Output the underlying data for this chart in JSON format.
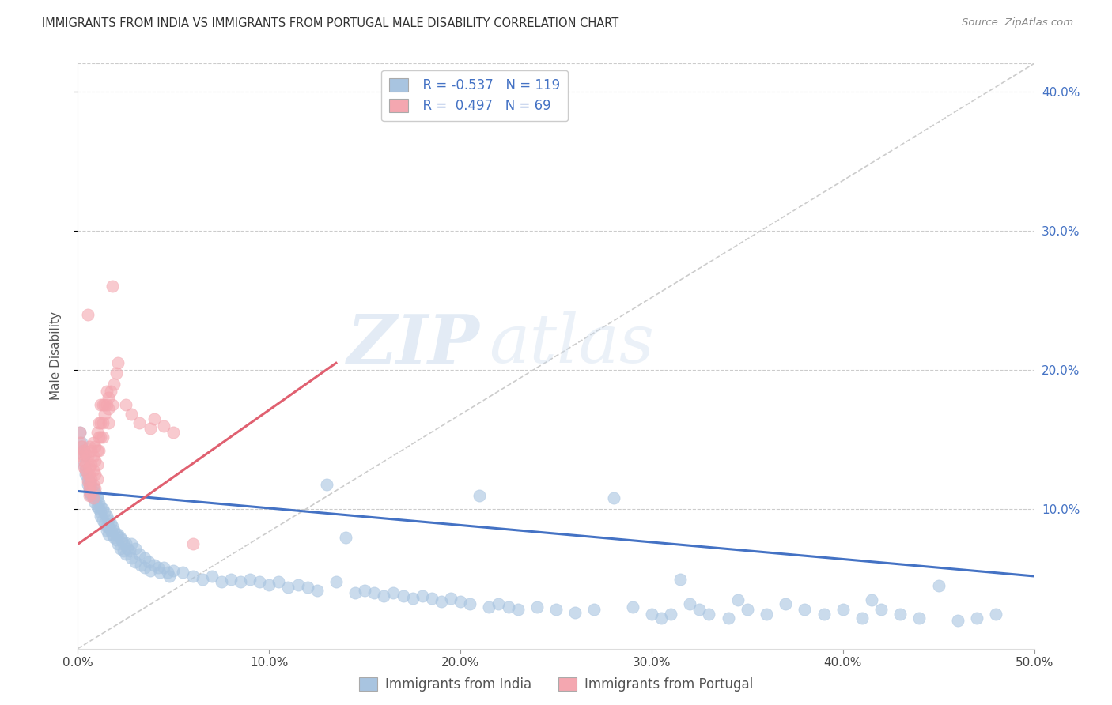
{
  "title": "IMMIGRANTS FROM INDIA VS IMMIGRANTS FROM PORTUGAL MALE DISABILITY CORRELATION CHART",
  "source": "Source: ZipAtlas.com",
  "ylabel": "Male Disability",
  "xlim": [
    0.0,
    0.5
  ],
  "ylim": [
    0.0,
    0.42
  ],
  "ytick_positions": [
    0.1,
    0.2,
    0.3,
    0.4
  ],
  "ytick_labels": [
    "10.0%",
    "20.0%",
    "30.0%",
    "40.0%"
  ],
  "xtick_positions": [
    0.0,
    0.1,
    0.2,
    0.3,
    0.4,
    0.5
  ],
  "xtick_labels": [
    "0.0%",
    "10.0%",
    "20.0%",
    "30.0%",
    "40.0%",
    "50.0%"
  ],
  "india_color": "#a8c4e0",
  "portugal_color": "#f4a7b0",
  "india_line_color": "#4472c4",
  "portugal_line_color": "#e06070",
  "diagonal_color": "#cccccc",
  "R_india": -0.537,
  "N_india": 119,
  "R_portugal": 0.497,
  "N_portugal": 69,
  "india_line_x0": 0.0,
  "india_line_y0": 0.113,
  "india_line_x1": 0.5,
  "india_line_y1": 0.052,
  "portugal_line_x0": 0.0,
  "portugal_line_y0": 0.075,
  "portugal_line_x1": 0.135,
  "portugal_line_y1": 0.205,
  "legend_label_india": "Immigrants from India",
  "legend_label_portugal": "Immigrants from Portugal",
  "watermark_zip": "ZIP",
  "watermark_atlas": "atlas",
  "india_scatter": [
    [
      0.001,
      0.155
    ],
    [
      0.002,
      0.148
    ],
    [
      0.002,
      0.145
    ],
    [
      0.003,
      0.142
    ],
    [
      0.003,
      0.138
    ],
    [
      0.003,
      0.132
    ],
    [
      0.004,
      0.128
    ],
    [
      0.004,
      0.125
    ],
    [
      0.005,
      0.122
    ],
    [
      0.005,
      0.118
    ],
    [
      0.006,
      0.115
    ],
    [
      0.006,
      0.12
    ],
    [
      0.006,
      0.112
    ],
    [
      0.007,
      0.118
    ],
    [
      0.007,
      0.11
    ],
    [
      0.008,
      0.115
    ],
    [
      0.008,
      0.108
    ],
    [
      0.009,
      0.112
    ],
    [
      0.009,
      0.105
    ],
    [
      0.01,
      0.11
    ],
    [
      0.01,
      0.108
    ],
    [
      0.01,
      0.102
    ],
    [
      0.011,
      0.105
    ],
    [
      0.011,
      0.1
    ],
    [
      0.012,
      0.102
    ],
    [
      0.012,
      0.098
    ],
    [
      0.012,
      0.095
    ],
    [
      0.013,
      0.1
    ],
    [
      0.013,
      0.092
    ],
    [
      0.014,
      0.098
    ],
    [
      0.014,
      0.09
    ],
    [
      0.015,
      0.095
    ],
    [
      0.015,
      0.088
    ],
    [
      0.015,
      0.085
    ],
    [
      0.016,
      0.092
    ],
    [
      0.016,
      0.088
    ],
    [
      0.016,
      0.082
    ],
    [
      0.017,
      0.09
    ],
    [
      0.017,
      0.085
    ],
    [
      0.018,
      0.088
    ],
    [
      0.018,
      0.082
    ],
    [
      0.019,
      0.085
    ],
    [
      0.019,
      0.08
    ],
    [
      0.02,
      0.082
    ],
    [
      0.02,
      0.078
    ],
    [
      0.021,
      0.082
    ],
    [
      0.021,
      0.075
    ],
    [
      0.022,
      0.08
    ],
    [
      0.022,
      0.072
    ],
    [
      0.023,
      0.078
    ],
    [
      0.024,
      0.075
    ],
    [
      0.024,
      0.07
    ],
    [
      0.025,
      0.076
    ],
    [
      0.025,
      0.068
    ],
    [
      0.026,
      0.072
    ],
    [
      0.027,
      0.07
    ],
    [
      0.028,
      0.075
    ],
    [
      0.028,
      0.065
    ],
    [
      0.03,
      0.072
    ],
    [
      0.03,
      0.062
    ],
    [
      0.032,
      0.068
    ],
    [
      0.033,
      0.06
    ],
    [
      0.035,
      0.065
    ],
    [
      0.035,
      0.058
    ],
    [
      0.037,
      0.062
    ],
    [
      0.038,
      0.056
    ],
    [
      0.04,
      0.06
    ],
    [
      0.042,
      0.058
    ],
    [
      0.043,
      0.055
    ],
    [
      0.045,
      0.058
    ],
    [
      0.047,
      0.055
    ],
    [
      0.048,
      0.052
    ],
    [
      0.05,
      0.056
    ],
    [
      0.055,
      0.055
    ],
    [
      0.06,
      0.052
    ],
    [
      0.065,
      0.05
    ],
    [
      0.07,
      0.052
    ],
    [
      0.075,
      0.048
    ],
    [
      0.08,
      0.05
    ],
    [
      0.085,
      0.048
    ],
    [
      0.09,
      0.05
    ],
    [
      0.095,
      0.048
    ],
    [
      0.1,
      0.046
    ],
    [
      0.105,
      0.048
    ],
    [
      0.11,
      0.044
    ],
    [
      0.115,
      0.046
    ],
    [
      0.12,
      0.044
    ],
    [
      0.125,
      0.042
    ],
    [
      0.13,
      0.118
    ],
    [
      0.135,
      0.048
    ],
    [
      0.14,
      0.08
    ],
    [
      0.145,
      0.04
    ],
    [
      0.15,
      0.042
    ],
    [
      0.155,
      0.04
    ],
    [
      0.16,
      0.038
    ],
    [
      0.165,
      0.04
    ],
    [
      0.17,
      0.038
    ],
    [
      0.175,
      0.036
    ],
    [
      0.18,
      0.038
    ],
    [
      0.185,
      0.036
    ],
    [
      0.19,
      0.034
    ],
    [
      0.195,
      0.036
    ],
    [
      0.2,
      0.034
    ],
    [
      0.205,
      0.032
    ],
    [
      0.21,
      0.11
    ],
    [
      0.215,
      0.03
    ],
    [
      0.22,
      0.032
    ],
    [
      0.225,
      0.03
    ],
    [
      0.23,
      0.028
    ],
    [
      0.24,
      0.03
    ],
    [
      0.25,
      0.028
    ],
    [
      0.26,
      0.026
    ],
    [
      0.27,
      0.028
    ],
    [
      0.28,
      0.108
    ],
    [
      0.29,
      0.03
    ],
    [
      0.3,
      0.025
    ],
    [
      0.305,
      0.022
    ],
    [
      0.31,
      0.025
    ],
    [
      0.315,
      0.05
    ],
    [
      0.32,
      0.032
    ],
    [
      0.325,
      0.028
    ],
    [
      0.33,
      0.025
    ],
    [
      0.34,
      0.022
    ],
    [
      0.345,
      0.035
    ],
    [
      0.35,
      0.028
    ],
    [
      0.36,
      0.025
    ],
    [
      0.37,
      0.032
    ],
    [
      0.38,
      0.028
    ],
    [
      0.39,
      0.025
    ],
    [
      0.4,
      0.028
    ],
    [
      0.41,
      0.022
    ],
    [
      0.415,
      0.035
    ],
    [
      0.42,
      0.028
    ],
    [
      0.43,
      0.025
    ],
    [
      0.44,
      0.022
    ],
    [
      0.45,
      0.045
    ],
    [
      0.46,
      0.02
    ],
    [
      0.47,
      0.022
    ],
    [
      0.48,
      0.025
    ]
  ],
  "portugal_scatter": [
    [
      0.001,
      0.155
    ],
    [
      0.001,
      0.148
    ],
    [
      0.002,
      0.145
    ],
    [
      0.002,
      0.14
    ],
    [
      0.002,
      0.138
    ],
    [
      0.003,
      0.142
    ],
    [
      0.003,
      0.135
    ],
    [
      0.003,
      0.13
    ],
    [
      0.004,
      0.14
    ],
    [
      0.004,
      0.132
    ],
    [
      0.004,
      0.128
    ],
    [
      0.005,
      0.138
    ],
    [
      0.005,
      0.125
    ],
    [
      0.005,
      0.12
    ],
    [
      0.005,
      0.24
    ],
    [
      0.006,
      0.145
    ],
    [
      0.006,
      0.13
    ],
    [
      0.006,
      0.125
    ],
    [
      0.006,
      0.118
    ],
    [
      0.006,
      0.115
    ],
    [
      0.006,
      0.11
    ],
    [
      0.007,
      0.142
    ],
    [
      0.007,
      0.132
    ],
    [
      0.007,
      0.122
    ],
    [
      0.007,
      0.112
    ],
    [
      0.008,
      0.148
    ],
    [
      0.008,
      0.138
    ],
    [
      0.008,
      0.128
    ],
    [
      0.008,
      0.118
    ],
    [
      0.008,
      0.108
    ],
    [
      0.009,
      0.145
    ],
    [
      0.009,
      0.135
    ],
    [
      0.009,
      0.125
    ],
    [
      0.009,
      0.115
    ],
    [
      0.01,
      0.155
    ],
    [
      0.01,
      0.142
    ],
    [
      0.01,
      0.132
    ],
    [
      0.01,
      0.122
    ],
    [
      0.011,
      0.162
    ],
    [
      0.011,
      0.152
    ],
    [
      0.011,
      0.142
    ],
    [
      0.012,
      0.175
    ],
    [
      0.012,
      0.162
    ],
    [
      0.012,
      0.152
    ],
    [
      0.013,
      0.175
    ],
    [
      0.013,
      0.162
    ],
    [
      0.013,
      0.152
    ],
    [
      0.014,
      0.175
    ],
    [
      0.014,
      0.168
    ],
    [
      0.015,
      0.185
    ],
    [
      0.015,
      0.175
    ],
    [
      0.016,
      0.18
    ],
    [
      0.016,
      0.172
    ],
    [
      0.016,
      0.162
    ],
    [
      0.017,
      0.185
    ],
    [
      0.018,
      0.175
    ],
    [
      0.018,
      0.26
    ],
    [
      0.019,
      0.19
    ],
    [
      0.02,
      0.198
    ],
    [
      0.021,
      0.205
    ],
    [
      0.025,
      0.175
    ],
    [
      0.028,
      0.168
    ],
    [
      0.032,
      0.162
    ],
    [
      0.038,
      0.158
    ],
    [
      0.04,
      0.165
    ],
    [
      0.045,
      0.16
    ],
    [
      0.05,
      0.155
    ],
    [
      0.06,
      0.075
    ]
  ]
}
